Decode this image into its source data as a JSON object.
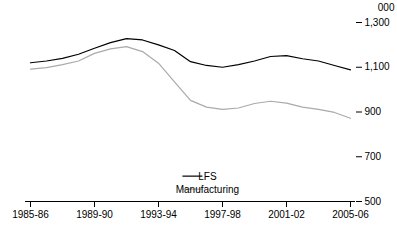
{
  "chart_data": {
    "type": "line",
    "ylabel": "000",
    "categories": [
      "1985-86",
      null,
      null,
      null,
      "1989-90",
      null,
      null,
      null,
      "1993-94",
      null,
      null,
      null,
      "1997-98",
      null,
      null,
      null,
      "2001-02",
      null,
      null,
      null,
      "2005-06"
    ],
    "series": [
      {
        "name": "LFS",
        "color": "#000000",
        "values": [
          1120,
          1128,
          1140,
          1158,
          1185,
          1210,
          1228,
          1222,
          1200,
          1175,
          1125,
          1108,
          1100,
          1112,
          1128,
          1148,
          1152,
          1138,
          1128,
          1108,
          1088
        ]
      },
      {
        "name": "Manufacturing",
        "color": "#aaaaaa",
        "values": [
          1092,
          1098,
          1112,
          1128,
          1162,
          1182,
          1192,
          1170,
          1118,
          1035,
          952,
          922,
          912,
          918,
          938,
          948,
          940,
          922,
          912,
          898,
          872
        ]
      }
    ],
    "ylim": [
      500,
      1300
    ],
    "yticks": [
      500,
      700,
      900,
      1100,
      1300
    ],
    "grid": false,
    "legend": "lower right"
  }
}
